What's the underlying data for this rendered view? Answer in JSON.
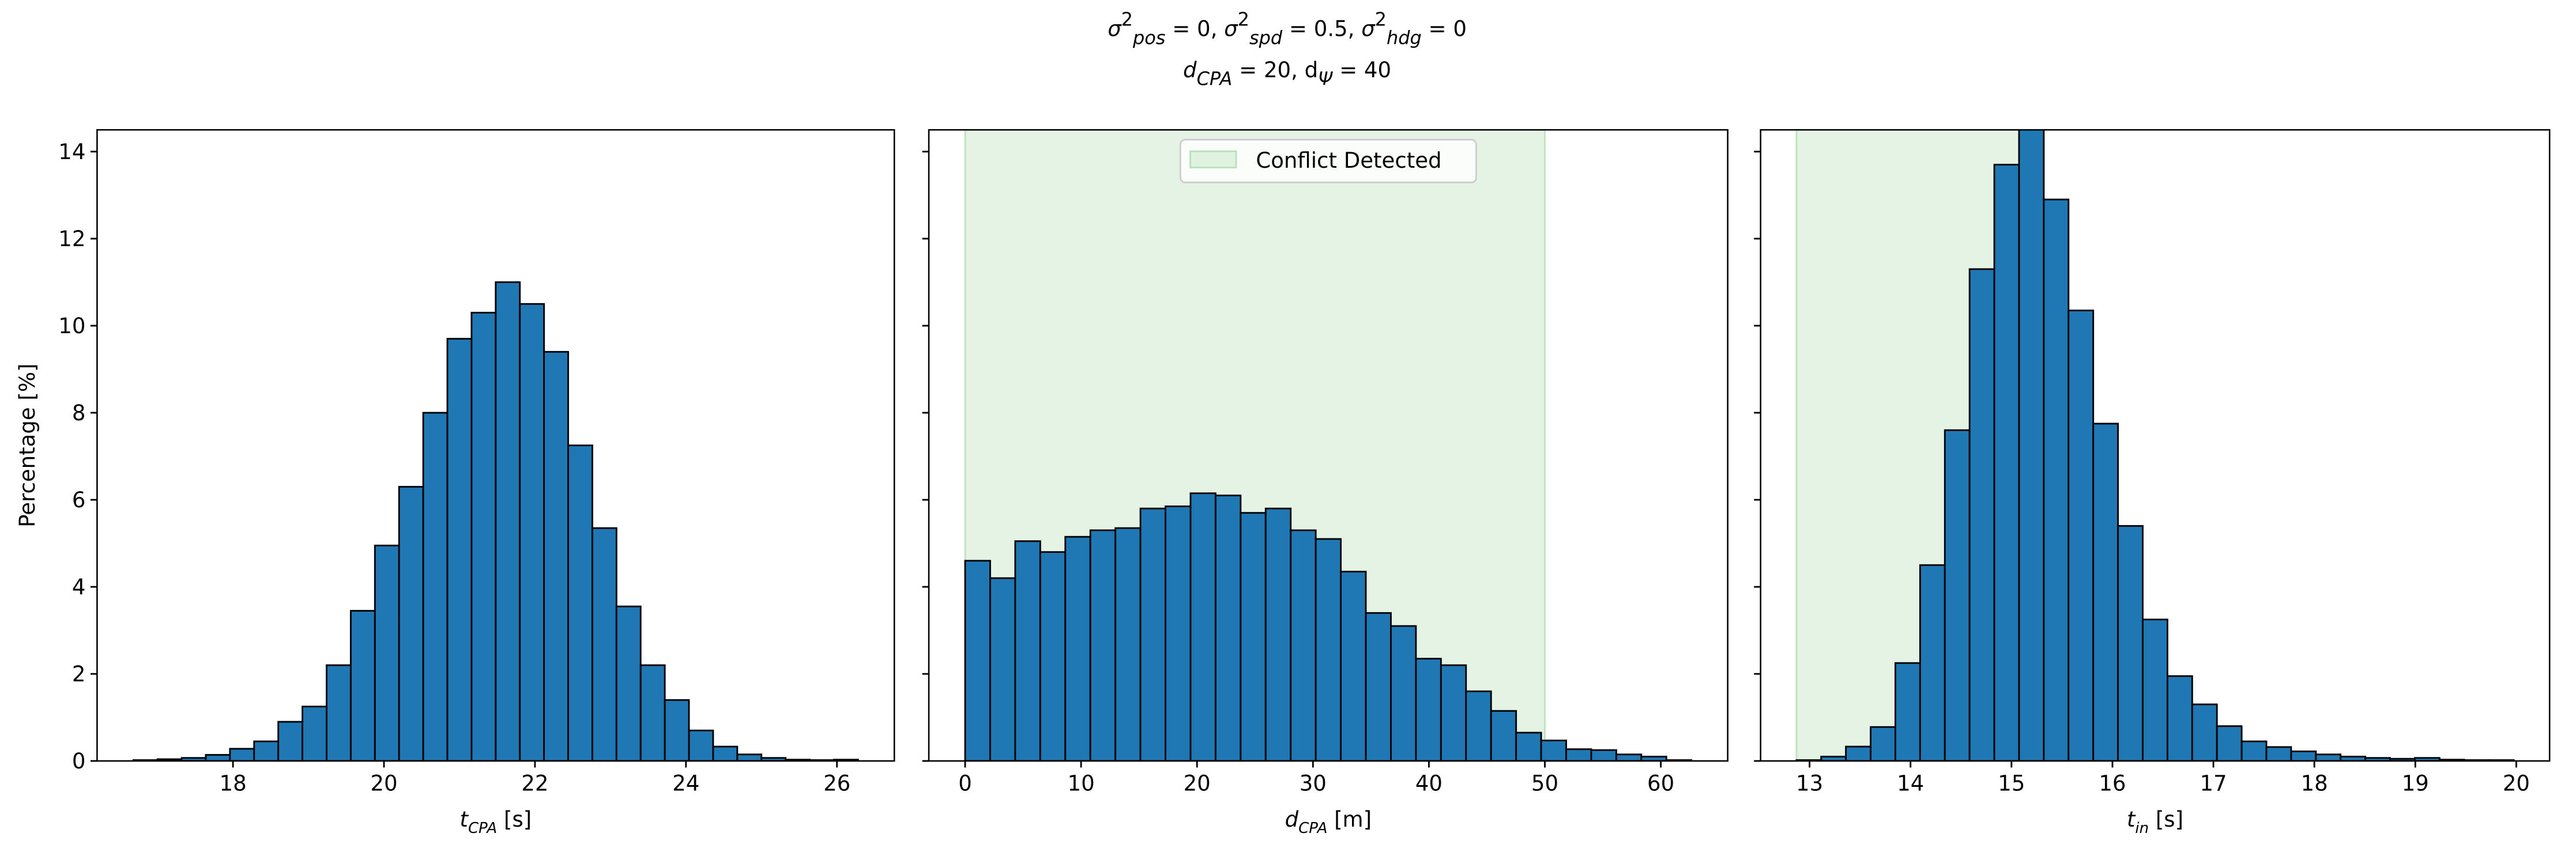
{
  "title": [
    [
      {
        "text": "σ",
        "shift": "none"
      },
      {
        "text": "2",
        "shift": "sup"
      },
      {
        "text": "pos",
        "shift": "sub"
      },
      {
        "text": " = 0, ",
        "shift": "none"
      },
      {
        "text": "σ",
        "shift": "none"
      },
      {
        "text": "2",
        "shift": "sup"
      },
      {
        "text": "spd",
        "shift": "sub"
      },
      {
        "text": " = 0.5, ",
        "shift": "none"
      },
      {
        "text": "σ",
        "shift": "none"
      },
      {
        "text": "2",
        "shift": "sup"
      },
      {
        "text": "hdg",
        "shift": "sub"
      },
      {
        "text": " = 0",
        "shift": "none"
      }
    ],
    [
      {
        "text": "d",
        "shift": "none"
      },
      {
        "text": "CPA",
        "shift": "sub"
      },
      {
        "text": " = 20, d",
        "shift": "none"
      },
      {
        "text": "Ψ",
        "shift": "sub"
      },
      {
        "text": " = 40",
        "shift": "none"
      }
    ]
  ],
  "chart_data": [
    {
      "type": "histogram",
      "color": "#1f77b4",
      "edgecolor": "#000000",
      "xlabel": [
        {
          "text": "t",
          "shift": "none"
        },
        {
          "text": "CPA",
          "shift": "sub"
        },
        {
          "text": " [s]",
          "shift": "none"
        }
      ],
      "ylabel": "Percentage [%]",
      "show_ytick_labels": true,
      "bins": [
        16.68,
        17.0,
        17.32,
        17.64,
        17.96,
        18.28,
        18.6,
        18.92,
        19.24,
        19.56,
        19.88,
        20.2,
        20.52,
        20.84,
        21.16,
        21.48,
        21.8,
        22.12,
        22.44,
        22.76,
        23.08,
        23.4,
        23.72,
        24.04,
        24.36,
        24.68,
        25.0,
        25.32,
        25.64,
        25.96,
        26.28
      ],
      "values": [
        0.02,
        0.04,
        0.07,
        0.14,
        0.28,
        0.45,
        0.9,
        1.25,
        2.2,
        3.45,
        4.95,
        6.3,
        8.0,
        9.7,
        10.3,
        11.0,
        10.5,
        9.4,
        7.25,
        5.35,
        3.55,
        2.2,
        1.4,
        0.7,
        0.33,
        0.15,
        0.07,
        0.03,
        0.02,
        0.03
      ],
      "xlim": [
        16.2,
        26.76
      ],
      "xticks": [
        18,
        20,
        22,
        24,
        26
      ],
      "ylim": [
        0,
        14.5
      ],
      "yticks": [
        0,
        2,
        4,
        6,
        8,
        10,
        12,
        14
      ]
    },
    {
      "type": "histogram",
      "color": "#1f77b4",
      "edgecolor": "#000000",
      "xlabel": [
        {
          "text": "d",
          "shift": "none"
        },
        {
          "text": "CPA",
          "shift": "sub"
        },
        {
          "text": " [m]",
          "shift": "none"
        }
      ],
      "show_ytick_labels": false,
      "span": {
        "name": "Conflict Detected",
        "range": [
          0,
          50
        ],
        "color": "#2ca02c"
      },
      "legend": "upper center",
      "bins": [
        0,
        2.16,
        4.32,
        6.48,
        8.64,
        10.8,
        12.96,
        15.12,
        17.28,
        19.44,
        21.6,
        23.76,
        25.92,
        28.08,
        30.24,
        32.4,
        34.56,
        36.72,
        38.88,
        41.04,
        43.2,
        45.36,
        47.52,
        49.68,
        51.84,
        54.0,
        56.16,
        58.32,
        60.48,
        62.64
      ],
      "values": [
        4.6,
        4.2,
        5.05,
        4.8,
        5.15,
        5.3,
        5.35,
        5.8,
        5.85,
        6.15,
        6.1,
        5.7,
        5.8,
        5.3,
        5.1,
        4.35,
        3.4,
        3.1,
        2.35,
        2.2,
        1.6,
        1.15,
        0.65,
        0.47,
        0.27,
        0.25,
        0.15,
        0.1,
        0.02
      ],
      "xlim": [
        -3.13,
        65.77
      ],
      "xticks": [
        0,
        10,
        20,
        30,
        40,
        50,
        60
      ],
      "ylim": [
        0,
        14.5
      ],
      "yticks": [
        0,
        2,
        4,
        6,
        8,
        10,
        12,
        14
      ]
    },
    {
      "type": "histogram",
      "color": "#1f77b4",
      "edgecolor": "#000000",
      "xlabel": [
        {
          "text": "t",
          "shift": "none"
        },
        {
          "text": "in",
          "shift": "sub"
        },
        {
          "text": " [s]",
          "shift": "none"
        }
      ],
      "show_ytick_labels": false,
      "span": {
        "range": [
          12.87,
          15.32
        ],
        "color": "#2ca02c"
      },
      "bins": [
        12.87,
        13.115,
        13.36,
        13.605,
        13.85,
        14.095,
        14.34,
        14.585,
        14.83,
        15.075,
        15.32,
        15.565,
        15.81,
        16.055,
        16.3,
        16.545,
        16.79,
        17.035,
        17.28,
        17.525,
        17.77,
        18.015,
        18.26,
        18.505,
        18.75,
        18.995,
        19.24,
        19.485,
        19.73,
        19.975
      ],
      "values": [
        0.02,
        0.1,
        0.33,
        0.78,
        2.25,
        4.5,
        7.6,
        11.3,
        13.7,
        14.9,
        12.9,
        10.35,
        7.75,
        5.4,
        3.25,
        1.95,
        1.3,
        0.8,
        0.45,
        0.32,
        0.22,
        0.15,
        0.1,
        0.07,
        0.05,
        0.07,
        0.03,
        0.02,
        0.02
      ],
      "xlim": [
        12.515,
        20.33
      ],
      "xticks": [
        13,
        14,
        15,
        16,
        17,
        18,
        19,
        20
      ],
      "ylim": [
        0,
        14.5
      ],
      "yticks": [
        0,
        2,
        4,
        6,
        8,
        10,
        12,
        14
      ]
    }
  ]
}
